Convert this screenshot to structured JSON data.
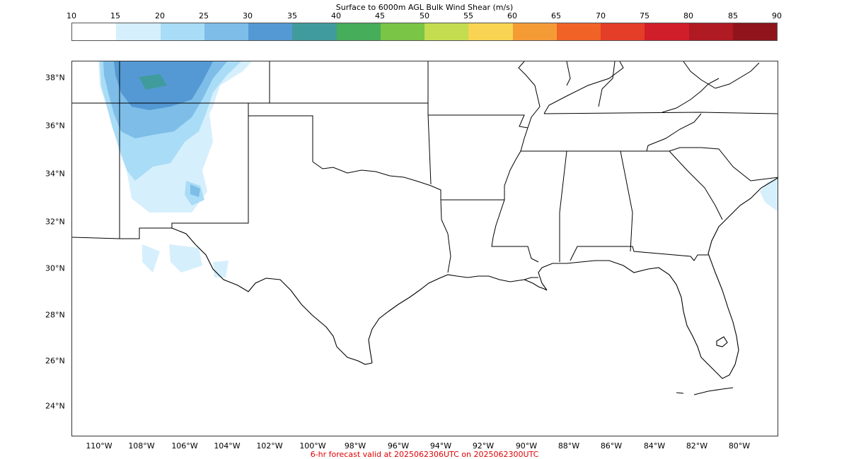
{
  "colorbar": {
    "title": "Surface to 6000m AGL Bulk Wind Shear (m/s)",
    "ticks": [
      "10",
      "15",
      "20",
      "25",
      "30",
      "35",
      "40",
      "45",
      "50",
      "55",
      "60",
      "65",
      "70",
      "75",
      "80",
      "85",
      "90"
    ],
    "colors": [
      "#ffffff",
      "#d6effc",
      "#a9dcf6",
      "#7dbde8",
      "#5499d4",
      "#409b9c",
      "#46ad5a",
      "#7ac446",
      "#c4dc50",
      "#f9d452",
      "#f59b36",
      "#f06226",
      "#e43d28",
      "#d01e2b",
      "#b01a22",
      "#8f141b"
    ]
  },
  "map": {
    "lat_labels": [
      "38°N",
      "36°N",
      "34°N",
      "32°N",
      "30°N",
      "28°N",
      "26°N",
      "24°N"
    ],
    "lon_labels": [
      "110°W",
      "108°W",
      "106°W",
      "104°W",
      "102°W",
      "100°W",
      "98°W",
      "96°W",
      "94°W",
      "92°W",
      "90°W",
      "88°W",
      "86°W",
      "84°W",
      "82°W",
      "80°W"
    ],
    "shear_fill_colors": [
      "#d6effc",
      "#a9dcf6",
      "#7dbde8",
      "#5499d4",
      "#409b9c"
    ]
  },
  "footer": "6-hr forecast valid at 2025062306UTC on 2025062300UTC"
}
